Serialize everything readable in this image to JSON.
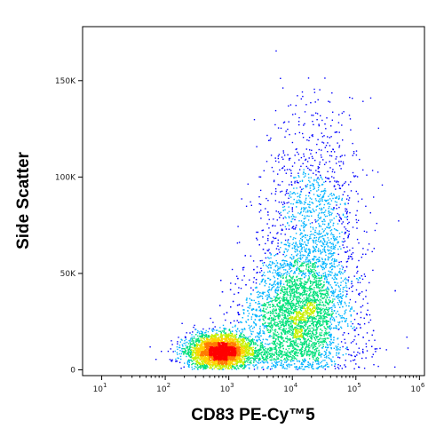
{
  "chart_data": {
    "type": "scatter",
    "subtype": "flow-cytometry-density-dot-plot",
    "xlabel": "CD83 PE-Cy™5",
    "ylabel": "Side Scatter",
    "x_scale": "log",
    "xlim": [
      5,
      1200000
    ],
    "ylim": [
      -3000,
      178000
    ],
    "x_ticks": [
      {
        "value": 10,
        "base": "10",
        "exp": "1"
      },
      {
        "value": 100,
        "base": "10",
        "exp": "2"
      },
      {
        "value": 1000,
        "base": "10",
        "exp": "3"
      },
      {
        "value": 10000,
        "base": "10",
        "exp": "4"
      },
      {
        "value": 100000,
        "base": "10",
        "exp": "5"
      },
      {
        "value": 1000000,
        "base": "10",
        "exp": "6"
      }
    ],
    "y_ticks": [
      {
        "value": 0,
        "label": "0"
      },
      {
        "value": 50000,
        "label": "50K"
      },
      {
        "value": 100000,
        "label": "100K"
      },
      {
        "value": 150000,
        "label": "150K"
      }
    ],
    "populations": [
      {
        "name_hint": "dense low-SSC cluster",
        "x_center": 700,
        "y_center": 10000,
        "x_spread_log": 0.25,
        "y_spread": 4500,
        "weight": 0.38
      },
      {
        "name_hint": "broad CD83+ cloud",
        "x_center": 12000,
        "y_center": 30000,
        "x_spread_log": 0.4,
        "y_spread": 14000,
        "weight": 0.4
      },
      {
        "name_hint": "high-SSC tail",
        "x_center": 20000,
        "y_center": 70000,
        "x_spread_log": 0.38,
        "y_spread": 30000,
        "weight": 0.16
      },
      {
        "name_hint": "bottom band",
        "x_center": 5000,
        "y_center": 9000,
        "x_spread_log": 0.7,
        "y_spread": 3500,
        "weight": 0.06
      }
    ],
    "density_colors": [
      "#0000ff",
      "#00b4ff",
      "#00e07a",
      "#c8f000",
      "#ffd200",
      "#ff7a00",
      "#ff0000"
    ],
    "grid": false,
    "legend": "none"
  }
}
